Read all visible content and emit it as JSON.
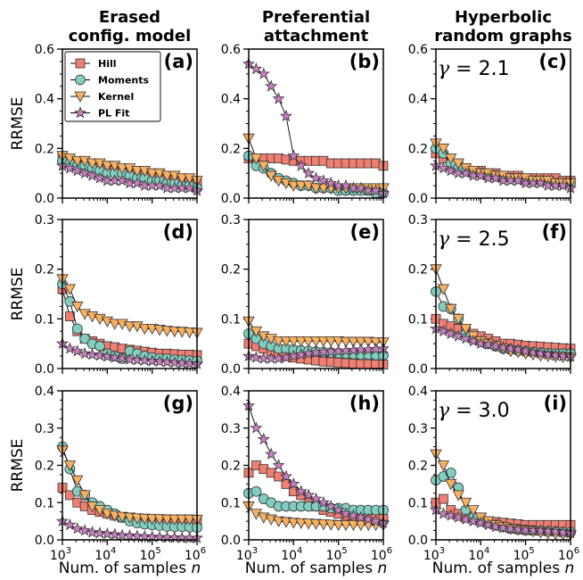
{
  "figure": {
    "column_titles": [
      [
        "Erased",
        "config. model"
      ],
      [
        "Preferential",
        "attachment"
      ],
      [
        "Hyperbolic",
        "random graphs"
      ]
    ],
    "ylabel": "RRMSE",
    "xlabel": "Num. of samples n",
    "legend": [
      "Hill",
      "Moments",
      "Kernel",
      "PL Fit"
    ],
    "x_tick_labels": [
      "10",
      "3",
      "10",
      "4",
      "10",
      "5",
      "10",
      "6"
    ],
    "row_gammas": [
      "2.1",
      "2.5",
      "3.0"
    ],
    "gamma_symbol": "γ = "
  },
  "colors": {
    "Hill": "#f07f73",
    "Moments": "#82cdc0",
    "Kernel": "#f8b163",
    "PL Fit": "#cc7fc3"
  },
  "chart_data": [
    {
      "type": "line",
      "panel": "(a)",
      "xscale": "log",
      "xlim": [
        1000,
        1000000
      ],
      "ylim": [
        0,
        0.6
      ],
      "yticks": [
        "0.0",
        "0.2",
        "0.4",
        "0.6"
      ],
      "ylabel": "RRMSE",
      "legend_position": "top-left",
      "series": [
        {
          "name": "Hill",
          "values": [
            0.16,
            0.15,
            0.14,
            0.14,
            0.13,
            0.12,
            0.12,
            0.11,
            0.11,
            0.1,
            0.1,
            0.09,
            0.09,
            0.08,
            0.08,
            0.07,
            0.07,
            0.07,
            0.06
          ]
        },
        {
          "name": "Moments",
          "values": [
            0.15,
            0.14,
            0.13,
            0.13,
            0.12,
            0.11,
            0.1,
            0.1,
            0.1,
            0.09,
            0.08,
            0.08,
            0.07,
            0.07,
            0.06,
            0.06,
            0.05,
            0.05,
            0.04
          ]
        },
        {
          "name": "Kernel",
          "values": [
            0.17,
            0.16,
            0.15,
            0.15,
            0.14,
            0.14,
            0.13,
            0.13,
            0.12,
            0.12,
            0.11,
            0.11,
            0.1,
            0.1,
            0.09,
            0.09,
            0.08,
            0.08,
            0.07
          ]
        },
        {
          "name": "PL Fit",
          "values": [
            0.13,
            0.12,
            0.11,
            0.1,
            0.09,
            0.08,
            0.07,
            0.07,
            0.07,
            0.06,
            0.06,
            0.05,
            0.05,
            0.05,
            0.04,
            0.04,
            0.04,
            0.04,
            0.03
          ]
        }
      ]
    },
    {
      "type": "line",
      "panel": "(b)",
      "xscale": "log",
      "xlim": [
        1000,
        1000000
      ],
      "ylim": [
        0,
        0.6
      ],
      "yticks": [
        "0.0",
        "0.2",
        "0.4",
        "0.6"
      ],
      "series": [
        {
          "name": "Hill",
          "values": [
            0.16,
            0.16,
            0.16,
            0.16,
            0.16,
            0.155,
            0.15,
            0.15,
            0.15,
            0.15,
            0.15,
            0.14,
            0.14,
            0.14,
            0.14,
            0.14,
            0.14,
            0.14,
            0.13
          ]
        },
        {
          "name": "Moments",
          "values": [
            0.17,
            0.13,
            0.12,
            0.1,
            0.08,
            0.07,
            0.06,
            0.05,
            0.05,
            0.04,
            0.04,
            0.04,
            0.03,
            0.03,
            0.03,
            0.03,
            0.03,
            0.02,
            0.02
          ]
        },
        {
          "name": "Kernel",
          "values": [
            0.24,
            0.16,
            0.13,
            0.09,
            0.07,
            0.06,
            0.05,
            0.05,
            0.05,
            0.04,
            0.04,
            0.04,
            0.04,
            0.04,
            0.04,
            0.04,
            0.04,
            0.04,
            0.04
          ]
        },
        {
          "name": "PL Fit",
          "values": [
            0.54,
            0.52,
            0.5,
            0.45,
            0.4,
            0.33,
            0.17,
            0.13,
            0.1,
            0.08,
            0.07,
            0.06,
            0.05,
            0.05,
            0.04,
            0.04,
            0.03,
            0.03,
            0.02
          ]
        }
      ]
    },
    {
      "type": "line",
      "panel": "(c)",
      "xscale": "log",
      "xlim": [
        1000,
        1000000
      ],
      "ylim": [
        0,
        0.6
      ],
      "yticks": [
        "0.0",
        "0.2",
        "0.4",
        "0.6"
      ],
      "gamma": "2.1",
      "series": [
        {
          "name": "Hill",
          "values": [
            0.18,
            0.16,
            0.14,
            0.13,
            0.12,
            0.11,
            0.11,
            0.1,
            0.1,
            0.09,
            0.09,
            0.09,
            0.08,
            0.08,
            0.08,
            0.08,
            0.08,
            0.07,
            0.07
          ]
        },
        {
          "name": "Moments",
          "values": [
            0.2,
            0.18,
            0.14,
            0.12,
            0.11,
            0.1,
            0.1,
            0.09,
            0.09,
            0.08,
            0.08,
            0.08,
            0.07,
            0.07,
            0.07,
            0.07,
            0.06,
            0.06,
            0.06
          ]
        },
        {
          "name": "Kernel",
          "values": [
            0.22,
            0.2,
            0.16,
            0.14,
            0.12,
            0.11,
            0.1,
            0.1,
            0.09,
            0.09,
            0.08,
            0.08,
            0.08,
            0.07,
            0.07,
            0.07,
            0.06,
            0.06,
            0.06
          ]
        },
        {
          "name": "PL Fit",
          "values": [
            0.13,
            0.12,
            0.11,
            0.1,
            0.1,
            0.09,
            0.09,
            0.08,
            0.08,
            0.07,
            0.07,
            0.07,
            0.06,
            0.06,
            0.06,
            0.05,
            0.05,
            0.05,
            0.04
          ]
        }
      ]
    },
    {
      "type": "line",
      "panel": "(d)",
      "xscale": "log",
      "xlim": [
        1000,
        1000000
      ],
      "ylim": [
        0,
        0.3
      ],
      "yticks": [
        "0.0",
        "0.1",
        "0.2",
        "0.3"
      ],
      "ylabel": "RRMSE",
      "series": [
        {
          "name": "Hill",
          "values": [
            0.16,
            0.105,
            0.075,
            0.06,
            0.055,
            0.05,
            0.045,
            0.043,
            0.04,
            0.038,
            0.036,
            0.034,
            0.032,
            0.03,
            0.03,
            0.029,
            0.028,
            0.028,
            0.027
          ]
        },
        {
          "name": "Moments",
          "values": [
            0.17,
            0.135,
            0.08,
            0.06,
            0.05,
            0.045,
            0.03,
            0.025,
            0.02,
            0.035,
            0.03,
            0.025,
            0.022,
            0.02,
            0.02,
            0.018,
            0.017,
            0.016,
            0.015
          ]
        },
        {
          "name": "Kernel",
          "values": [
            0.18,
            0.16,
            0.125,
            0.11,
            0.105,
            0.1,
            0.095,
            0.09,
            0.09,
            0.085,
            0.085,
            0.08,
            0.08,
            0.078,
            0.076,
            0.075,
            0.074,
            0.073,
            0.072
          ]
        },
        {
          "name": "PL Fit",
          "values": [
            0.05,
            0.04,
            0.035,
            0.03,
            0.028,
            0.026,
            0.024,
            0.022,
            0.02,
            0.018,
            0.017,
            0.016,
            0.015,
            0.014,
            0.013,
            0.012,
            0.011,
            0.01,
            0.009
          ]
        }
      ]
    },
    {
      "type": "line",
      "panel": "(e)",
      "xscale": "log",
      "xlim": [
        1000,
        1000000
      ],
      "ylim": [
        0,
        0.3
      ],
      "yticks": [
        "0.0",
        "0.1",
        "0.2",
        "0.3"
      ],
      "series": [
        {
          "name": "Hill",
          "values": [
            0.05,
            0.045,
            0.04,
            0.035,
            0.03,
            0.025,
            0.022,
            0.02,
            0.018,
            0.016,
            0.014,
            0.013,
            0.012,
            0.011,
            0.01,
            0.009,
            0.009,
            0.008,
            0.008
          ]
        },
        {
          "name": "Moments",
          "values": [
            0.07,
            0.06,
            0.05,
            0.045,
            0.04,
            0.04,
            0.038,
            0.036,
            0.035,
            0.034,
            0.033,
            0.032,
            0.031,
            0.03,
            0.029,
            0.028,
            0.028,
            0.027,
            0.027
          ]
        },
        {
          "name": "Kernel",
          "values": [
            0.095,
            0.075,
            0.065,
            0.06,
            0.055,
            0.055,
            0.055,
            0.055,
            0.055,
            0.055,
            0.055,
            0.055,
            0.055,
            0.054,
            0.054,
            0.054,
            0.054,
            0.053,
            0.053
          ]
        },
        {
          "name": "PL Fit",
          "values": [
            0.025,
            0.022,
            0.02,
            0.02,
            0.02,
            0.022,
            0.025,
            0.028,
            0.03,
            0.032,
            0.033,
            0.034,
            0.035,
            0.036,
            0.037,
            0.038,
            0.038,
            0.039,
            0.04
          ]
        }
      ]
    },
    {
      "type": "line",
      "panel": "(f)",
      "xscale": "log",
      "xlim": [
        1000,
        1000000
      ],
      "ylim": [
        0,
        0.3
      ],
      "yticks": [
        "0.0",
        "0.1",
        "0.2",
        "0.3"
      ],
      "gamma": "2.5",
      "series": [
        {
          "name": "Hill",
          "values": [
            0.1,
            0.09,
            0.085,
            0.08,
            0.075,
            0.07,
            0.065,
            0.06,
            0.055,
            0.05,
            0.05,
            0.048,
            0.046,
            0.045,
            0.044,
            0.043,
            0.042,
            0.041,
            0.04
          ]
        },
        {
          "name": "Moments",
          "values": [
            0.155,
            0.125,
            0.12,
            0.1,
            0.07,
            0.06,
            0.055,
            0.05,
            0.045,
            0.04,
            0.038,
            0.036,
            0.034,
            0.033,
            0.032,
            0.031,
            0.03,
            0.03,
            0.03
          ]
        },
        {
          "name": "Kernel",
          "values": [
            0.2,
            0.16,
            0.12,
            0.1,
            0.08,
            0.065,
            0.055,
            0.05,
            0.045,
            0.04,
            0.035,
            0.033,
            0.03,
            0.028,
            0.026,
            0.025,
            0.024,
            0.023,
            0.022
          ]
        },
        {
          "name": "PL Fit",
          "values": [
            0.08,
            0.075,
            0.07,
            0.065,
            0.06,
            0.055,
            0.05,
            0.048,
            0.045,
            0.042,
            0.04,
            0.038,
            0.035,
            0.032,
            0.03,
            0.028,
            0.026,
            0.025,
            0.024
          ]
        }
      ]
    },
    {
      "type": "line",
      "panel": "(g)",
      "xscale": "log",
      "xlim": [
        1000,
        1000000
      ],
      "ylim": [
        0,
        0.4
      ],
      "yticks": [
        "0.0",
        "0.1",
        "0.2",
        "0.3",
        "0.4"
      ],
      "ylabel": "RRMSE",
      "series": [
        {
          "name": "Hill",
          "values": [
            0.14,
            0.12,
            0.1,
            0.09,
            0.08,
            0.075,
            0.07,
            0.065,
            0.06,
            0.058,
            0.056,
            0.055,
            0.054,
            0.053,
            0.052,
            0.051,
            0.05,
            0.05,
            0.05
          ]
        },
        {
          "name": "Moments",
          "values": [
            0.25,
            0.19,
            0.13,
            0.12,
            0.1,
            0.09,
            0.08,
            0.07,
            0.06,
            0.05,
            0.045,
            0.042,
            0.04,
            0.038,
            0.036,
            0.035,
            0.035,
            0.034,
            0.033
          ]
        },
        {
          "name": "Kernel",
          "values": [
            0.24,
            0.2,
            0.16,
            0.12,
            0.09,
            0.08,
            0.07,
            0.065,
            0.062,
            0.06,
            0.058,
            0.057,
            0.056,
            0.056,
            0.055,
            0.055,
            0.055,
            0.055,
            0.054
          ]
        },
        {
          "name": "PL Fit",
          "values": [
            0.05,
            0.04,
            0.03,
            0.025,
            0.02,
            0.018,
            0.016,
            0.014,
            0.012,
            0.011,
            0.01,
            0.009,
            0.008,
            0.007,
            0.006,
            0.006,
            0.005,
            0.005,
            0.005
          ]
        }
      ]
    },
    {
      "type": "line",
      "panel": "(h)",
      "xscale": "log",
      "xlim": [
        1000,
        1000000
      ],
      "ylim": [
        0,
        0.4
      ],
      "yticks": [
        "0.0",
        "0.1",
        "0.2",
        "0.3",
        "0.4"
      ],
      "series": [
        {
          "name": "Hill",
          "values": [
            0.18,
            0.2,
            0.19,
            0.18,
            0.17,
            0.15,
            0.13,
            0.12,
            0.1,
            0.09,
            0.08,
            0.075,
            0.07,
            0.065,
            0.062,
            0.06,
            0.058,
            0.057,
            0.056
          ]
        },
        {
          "name": "Moments",
          "values": [
            0.125,
            0.13,
            0.11,
            0.1,
            0.09,
            0.09,
            0.09,
            0.09,
            0.09,
            0.09,
            0.09,
            0.085,
            0.085,
            0.085,
            0.08,
            0.08,
            0.08,
            0.08,
            0.08
          ]
        },
        {
          "name": "Kernel",
          "values": [
            0.09,
            0.07,
            0.06,
            0.055,
            0.05,
            0.048,
            0.046,
            0.045,
            0.044,
            0.043,
            0.042,
            0.041,
            0.04,
            0.04,
            0.04,
            0.04,
            0.04,
            0.04,
            0.04
          ]
        },
        {
          "name": "PL Fit",
          "values": [
            0.36,
            0.3,
            0.27,
            0.23,
            0.2,
            0.17,
            0.15,
            0.13,
            0.12,
            0.11,
            0.1,
            0.09,
            0.08,
            0.07,
            0.065,
            0.06,
            0.055,
            0.05,
            0.045
          ]
        }
      ]
    },
    {
      "type": "line",
      "panel": "(i)",
      "xscale": "log",
      "xlim": [
        1000,
        1000000
      ],
      "ylim": [
        0,
        0.4
      ],
      "yticks": [
        "0.0",
        "0.1",
        "0.2",
        "0.3",
        "0.4"
      ],
      "gamma": "3.0",
      "series": [
        {
          "name": "Hill",
          "values": [
            0.1,
            0.11,
            0.08,
            0.07,
            0.06,
            0.06,
            0.055,
            0.05,
            0.048,
            0.046,
            0.044,
            0.042,
            0.04,
            0.04,
            0.04,
            0.04,
            0.04,
            0.04,
            0.04
          ]
        },
        {
          "name": "Moments",
          "values": [
            0.16,
            0.17,
            0.18,
            0.14,
            0.08,
            0.06,
            0.05,
            0.045,
            0.04,
            0.035,
            0.03,
            0.028,
            0.026,
            0.025,
            0.024,
            0.023,
            0.022,
            0.021,
            0.02
          ]
        },
        {
          "name": "Kernel",
          "values": [
            0.23,
            0.2,
            0.15,
            0.12,
            0.1,
            0.08,
            0.06,
            0.05,
            0.04,
            0.035,
            0.03,
            0.027,
            0.025,
            0.023,
            0.02,
            0.018,
            0.016,
            0.015,
            0.014
          ]
        },
        {
          "name": "PL Fit",
          "values": [
            0.08,
            0.07,
            0.065,
            0.06,
            0.055,
            0.05,
            0.045,
            0.04,
            0.035,
            0.032,
            0.03,
            0.028,
            0.026,
            0.025,
            0.024,
            0.023,
            0.022,
            0.02,
            0.018
          ]
        }
      ]
    }
  ]
}
